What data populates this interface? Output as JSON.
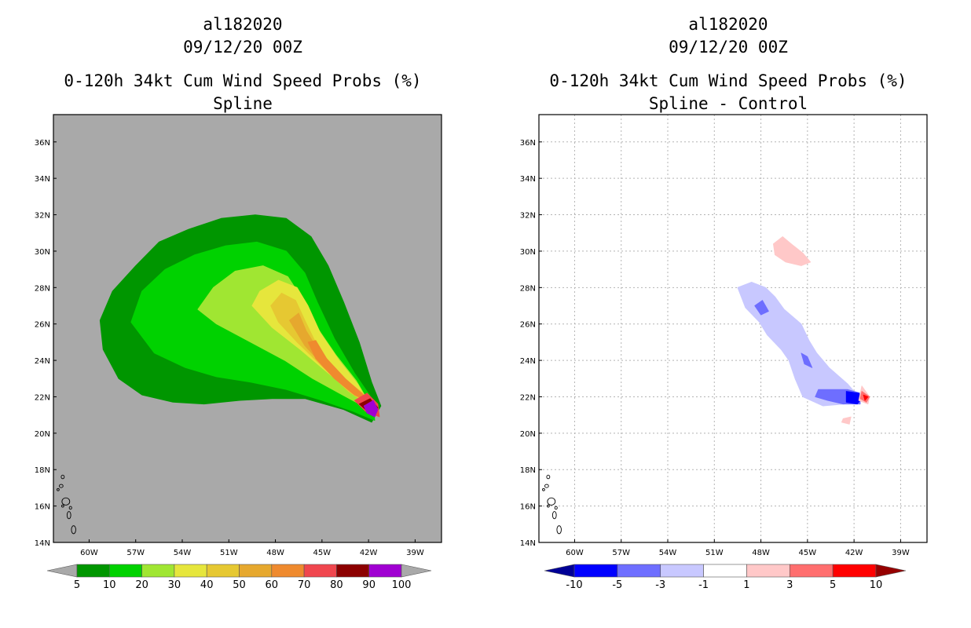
{
  "chart_data": [
    {
      "type": "heatmap",
      "storm_id": "al182020",
      "date": "09/12/20 00Z",
      "title": "0-120h 34kt Cum Wind Speed Probs (%)",
      "subtitle": "Spline",
      "x_ticks": [
        "60W",
        "57W",
        "54W",
        "51W",
        "48W",
        "45W",
        "42W",
        "39W"
      ],
      "x_tick_values": [
        -60,
        -57,
        -54,
        -51,
        -48,
        -45,
        -42,
        -39
      ],
      "y_ticks": [
        "14N",
        "16N",
        "18N",
        "20N",
        "22N",
        "24N",
        "26N",
        "28N",
        "30N",
        "32N",
        "34N",
        "36N"
      ],
      "y_tick_values": [
        14,
        16,
        18,
        20,
        22,
        24,
        26,
        28,
        30,
        32,
        34,
        36
      ],
      "lon_range": [
        -62.3,
        -37.3
      ],
      "lat_range": [
        14,
        37.5
      ],
      "grid": false,
      "background_color": "#a9a9a9",
      "colorbar": {
        "labels": [
          "5",
          "10",
          "20",
          "30",
          "40",
          "50",
          "60",
          "70",
          "80",
          "90",
          "100"
        ],
        "colors": [
          "#a9a9a9",
          "#009600",
          "#00d200",
          "#a0e632",
          "#e6e63c",
          "#e6c832",
          "#e6a82e",
          "#ef8a2e",
          "#f0464e",
          "#8c0000",
          "#a000d2",
          "#a9a9a9"
        ]
      },
      "contour_levels": [
        {
          "min": 5,
          "max": 10,
          "color": "#009600",
          "polygon": [
            [
              -59.3,
              26.2
            ],
            [
              -58.5,
              27.8
            ],
            [
              -57.0,
              29.2
            ],
            [
              -55.5,
              30.5
            ],
            [
              -53.6,
              31.2
            ],
            [
              -51.5,
              31.8
            ],
            [
              -49.3,
              32.0
            ],
            [
              -47.3,
              31.8
            ],
            [
              -45.7,
              30.8
            ],
            [
              -44.6,
              29.2
            ],
            [
              -43.6,
              27.2
            ],
            [
              -42.6,
              25.0
            ],
            [
              -41.8,
              22.8
            ],
            [
              -41.2,
              21.5
            ],
            [
              -41.8,
              20.6
            ],
            [
              -43.6,
              21.3
            ],
            [
              -46.1,
              21.9
            ],
            [
              -48.2,
              21.9
            ],
            [
              -50.3,
              21.8
            ],
            [
              -52.6,
              21.6
            ],
            [
              -54.6,
              21.7
            ],
            [
              -56.6,
              22.1
            ],
            [
              -58.1,
              23.0
            ],
            [
              -59.1,
              24.6
            ]
          ]
        },
        {
          "min": 10,
          "max": 20,
          "color": "#00d200",
          "polygon": [
            [
              -57.3,
              26.1
            ],
            [
              -56.6,
              27.8
            ],
            [
              -55.1,
              29.0
            ],
            [
              -53.2,
              29.8
            ],
            [
              -51.2,
              30.3
            ],
            [
              -49.2,
              30.5
            ],
            [
              -47.3,
              30.0
            ],
            [
              -46.1,
              28.8
            ],
            [
              -45.3,
              27.2
            ],
            [
              -44.2,
              25.2
            ],
            [
              -42.9,
              23.3
            ],
            [
              -41.7,
              21.8
            ],
            [
              -41.6,
              20.7
            ],
            [
              -43.0,
              21.2
            ],
            [
              -45.0,
              21.8
            ],
            [
              -47.3,
              22.4
            ],
            [
              -49.6,
              22.8
            ],
            [
              -51.8,
              23.1
            ],
            [
              -53.8,
              23.6
            ],
            [
              -55.8,
              24.4
            ]
          ]
        },
        {
          "min": 20,
          "max": 30,
          "color": "#a0e632",
          "polygon": [
            [
              -53.0,
              26.8
            ],
            [
              -52.0,
              28.0
            ],
            [
              -50.6,
              28.9
            ],
            [
              -48.8,
              29.2
            ],
            [
              -47.2,
              28.6
            ],
            [
              -46.2,
              27.3
            ],
            [
              -45.3,
              25.8
            ],
            [
              -44.1,
              24.3
            ],
            [
              -42.8,
              22.9
            ],
            [
              -41.7,
              21.3
            ],
            [
              -42.6,
              21.6
            ],
            [
              -43.9,
              22.2
            ],
            [
              -45.6,
              23.0
            ],
            [
              -47.4,
              24.0
            ],
            [
              -49.6,
              25.0
            ],
            [
              -51.8,
              26.0
            ]
          ]
        },
        {
          "min": 30,
          "max": 40,
          "color": "#e6e63c",
          "polygon": [
            [
              -49.5,
              27.0
            ],
            [
              -49.0,
              27.8
            ],
            [
              -47.8,
              28.4
            ],
            [
              -46.6,
              28.0
            ],
            [
              -45.9,
              27.0
            ],
            [
              -45.1,
              25.5
            ],
            [
              -43.9,
              24.0
            ],
            [
              -42.7,
              22.7
            ],
            [
              -41.9,
              21.5
            ],
            [
              -43.0,
              22.2
            ],
            [
              -44.6,
              23.3
            ],
            [
              -46.4,
              24.6
            ],
            [
              -48.2,
              25.8
            ]
          ]
        },
        {
          "min": 40,
          "max": 50,
          "color": "#e6c832",
          "polygon": [
            [
              -48.3,
              27.0
            ],
            [
              -47.6,
              27.7
            ],
            [
              -46.7,
              27.3
            ],
            [
              -46.1,
              26.2
            ],
            [
              -45.3,
              24.8
            ],
            [
              -44.1,
              23.4
            ],
            [
              -42.6,
              22.3
            ],
            [
              -41.9,
              21.5
            ],
            [
              -43.3,
              22.3
            ],
            [
              -44.9,
              23.6
            ],
            [
              -46.6,
              25.0
            ],
            [
              -47.8,
              26.1
            ]
          ]
        },
        {
          "min": 50,
          "max": 60,
          "color": "#e6a82e",
          "polygon": [
            [
              -47.1,
              26.2
            ],
            [
              -46.5,
              26.6
            ],
            [
              -46.0,
              25.6
            ],
            [
              -45.1,
              24.4
            ],
            [
              -43.8,
              23.2
            ],
            [
              -42.4,
              22.2
            ],
            [
              -41.9,
              21.6
            ],
            [
              -43.3,
              22.4
            ],
            [
              -44.8,
              23.6
            ],
            [
              -46.1,
              24.8
            ]
          ]
        },
        {
          "min": 60,
          "max": 70,
          "color": "#ef8a2e",
          "polygon": [
            [
              -45.9,
              25.0
            ],
            [
              -45.4,
              25.1
            ],
            [
              -44.7,
              24.1
            ],
            [
              -43.5,
              23.0
            ],
            [
              -42.2,
              22.0
            ],
            [
              -41.9,
              21.7
            ],
            [
              -42.9,
              22.1
            ],
            [
              -44.2,
              23.0
            ],
            [
              -45.4,
              24.1
            ]
          ]
        },
        {
          "min": 70,
          "max": 80,
          "color": "#f0464e",
          "polygon": [
            [
              -42.9,
              21.8
            ],
            [
              -42.1,
              22.2
            ],
            [
              -41.4,
              21.6
            ],
            [
              -41.3,
              20.9
            ],
            [
              -42.2,
              21.2
            ]
          ]
        },
        {
          "min": 80,
          "max": 90,
          "color": "#8c0000",
          "polygon": [
            [
              -42.6,
              21.6
            ],
            [
              -41.9,
              21.9
            ],
            [
              -41.4,
              21.4
            ],
            [
              -41.6,
              21.1
            ],
            [
              -42.2,
              21.3
            ]
          ]
        },
        {
          "min": 90,
          "max": 100,
          "color": "#a000d2",
          "polygon": [
            [
              -42.3,
              21.5
            ],
            [
              -41.7,
              21.8
            ],
            [
              -41.4,
              21.3
            ],
            [
              -41.6,
              20.9
            ],
            [
              -42.1,
              21.1
            ]
          ]
        }
      ]
    },
    {
      "type": "heatmap",
      "storm_id": "al182020",
      "date": "09/12/20 00Z",
      "title": "0-120h 34kt Cum Wind Speed Probs (%)",
      "subtitle": "Spline - Control",
      "x_ticks": [
        "60W",
        "57W",
        "54W",
        "51W",
        "48W",
        "45W",
        "42W",
        "39W"
      ],
      "x_tick_values": [
        -60,
        -57,
        -54,
        -51,
        -48,
        -45,
        -42,
        -39
      ],
      "y_ticks": [
        "14N",
        "16N",
        "18N",
        "20N",
        "22N",
        "24N",
        "26N",
        "28N",
        "30N",
        "32N",
        "34N",
        "36N"
      ],
      "y_tick_values": [
        14,
        16,
        18,
        20,
        22,
        24,
        26,
        28,
        30,
        32,
        34,
        36
      ],
      "lon_range": [
        -62.3,
        -37.3
      ],
      "lat_range": [
        14,
        37.5
      ],
      "grid": true,
      "background_color": "#ffffff",
      "colorbar": {
        "labels": [
          "-10",
          "-5",
          "-3",
          "-1",
          "1",
          "3",
          "5",
          "10"
        ],
        "colors": [
          "#000096",
          "#0000ff",
          "#6e6eff",
          "#c8c8ff",
          "#ffffff",
          "#ffc8c8",
          "#ff6e6e",
          "#ff0000",
          "#960000"
        ]
      },
      "contour_levels": [
        {
          "min": -3,
          "max": -1,
          "color": "#c8c8ff",
          "polygon": [
            [
              -49.5,
              28.0
            ],
            [
              -48.6,
              28.3
            ],
            [
              -47.7,
              28.0
            ],
            [
              -47.1,
              27.5
            ],
            [
              -46.5,
              26.8
            ],
            [
              -45.4,
              26.0
            ],
            [
              -44.9,
              25.1
            ],
            [
              -44.4,
              24.4
            ],
            [
              -43.6,
              23.6
            ],
            [
              -42.4,
              22.7
            ],
            [
              -41.9,
              22.2
            ],
            [
              -42.6,
              21.6
            ],
            [
              -44.0,
              21.5
            ],
            [
              -45.3,
              22.0
            ],
            [
              -45.8,
              23.0
            ],
            [
              -46.2,
              24.0
            ],
            [
              -46.7,
              24.6
            ],
            [
              -47.6,
              25.4
            ],
            [
              -48.1,
              26.1
            ],
            [
              -49.0,
              26.9
            ]
          ]
        },
        {
          "min": -5,
          "max": -3,
          "color": "#6e6eff",
          "polygon": [
            [
              -48.4,
              27.0
            ],
            [
              -47.9,
              27.3
            ],
            [
              -47.5,
              26.7
            ],
            [
              -48.0,
              26.5
            ]
          ]
        },
        {
          "min": -5,
          "max": -3,
          "color": "#6e6eff",
          "polygon": [
            [
              -45.4,
              24.4
            ],
            [
              -45.0,
              24.2
            ],
            [
              -44.7,
              23.6
            ],
            [
              -45.2,
              23.8
            ]
          ]
        },
        {
          "min": -5,
          "max": -3,
          "color": "#6e6eff",
          "polygon": [
            [
              -44.3,
              22.4
            ],
            [
              -42.4,
              22.4
            ],
            [
              -41.6,
              22.2
            ],
            [
              -41.6,
              21.6
            ],
            [
              -42.7,
              21.6
            ],
            [
              -43.7,
              21.8
            ],
            [
              -44.5,
              22.0
            ]
          ]
        },
        {
          "min": -10,
          "max": -5,
          "color": "#0000ff",
          "polygon": [
            [
              -42.5,
              22.3
            ],
            [
              -41.7,
              22.2
            ],
            [
              -41.5,
              21.9
            ],
            [
              -41.8,
              21.6
            ],
            [
              -42.5,
              21.7
            ]
          ]
        },
        {
          "min": 1,
          "max": 3,
          "color": "#ffc8c8",
          "polygon": [
            [
              -47.2,
              30.4
            ],
            [
              -46.6,
              30.8
            ],
            [
              -45.9,
              30.3
            ],
            [
              -45.3,
              29.9
            ],
            [
              -44.8,
              29.4
            ],
            [
              -45.4,
              29.2
            ],
            [
              -46.4,
              29.4
            ],
            [
              -47.1,
              29.8
            ]
          ]
        },
        {
          "min": 1,
          "max": 3,
          "color": "#ffc8c8",
          "polygon": [
            [
              -41.5,
              22.6
            ],
            [
              -41.0,
              22.0
            ],
            [
              -41.1,
              21.6
            ],
            [
              -41.7,
              21.8
            ]
          ]
        },
        {
          "min": 1,
          "max": 3,
          "color": "#ffc8c8",
          "polygon": [
            [
              -42.7,
              20.8
            ],
            [
              -42.2,
              20.9
            ],
            [
              -42.3,
              20.5
            ],
            [
              -42.8,
              20.6
            ]
          ]
        },
        {
          "min": 3,
          "max": 5,
          "color": "#ff6e6e",
          "polygon": [
            [
              -41.5,
              22.3
            ],
            [
              -41.0,
              22.0
            ],
            [
              -41.2,
              21.7
            ],
            [
              -41.6,
              21.9
            ]
          ]
        },
        {
          "min": 5,
          "max": 10,
          "color": "#ff0000",
          "polygon": [
            [
              -41.4,
              22.1
            ],
            [
              -41.1,
              22.0
            ],
            [
              -41.3,
              21.8
            ]
          ]
        }
      ]
    }
  ]
}
